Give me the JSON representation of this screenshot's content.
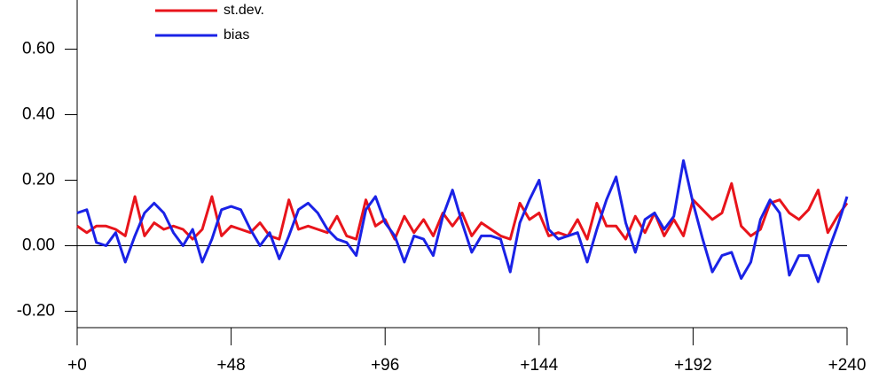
{
  "chart_data": {
    "type": "line",
    "x": [
      0,
      3,
      6,
      9,
      12,
      15,
      18,
      21,
      24,
      27,
      30,
      33,
      36,
      39,
      42,
      45,
      48,
      51,
      54,
      57,
      60,
      63,
      66,
      69,
      72,
      75,
      78,
      81,
      84,
      87,
      90,
      93,
      96,
      99,
      102,
      105,
      108,
      111,
      114,
      117,
      120,
      123,
      126,
      129,
      132,
      135,
      138,
      141,
      144,
      147,
      150,
      153,
      156,
      159,
      162,
      165,
      168,
      171,
      174,
      177,
      180,
      183,
      186,
      189,
      192,
      195,
      198,
      201,
      204,
      207,
      210,
      213,
      216,
      219,
      222,
      225,
      228,
      231,
      234,
      237,
      240
    ],
    "series": [
      {
        "name": "st.dev.",
        "color": "#e8141b",
        "values": [
          0.06,
          0.04,
          0.06,
          0.06,
          0.05,
          0.03,
          0.15,
          0.03,
          0.07,
          0.05,
          0.06,
          0.05,
          0.02,
          0.05,
          0.15,
          0.03,
          0.06,
          0.05,
          0.04,
          0.07,
          0.03,
          0.02,
          0.14,
          0.05,
          0.06,
          0.05,
          0.04,
          0.09,
          0.03,
          0.02,
          0.14,
          0.06,
          0.08,
          0.02,
          0.09,
          0.04,
          0.08,
          0.03,
          0.1,
          0.06,
          0.1,
          0.03,
          0.07,
          0.05,
          0.03,
          0.02,
          0.13,
          0.08,
          0.1,
          0.03,
          0.04,
          0.03,
          0.08,
          0.02,
          0.13,
          0.06,
          0.06,
          0.02,
          0.09,
          0.04,
          0.1,
          0.03,
          0.08,
          0.03,
          0.14,
          0.11,
          0.08,
          0.1,
          0.19,
          0.06,
          0.03,
          0.05,
          0.13,
          0.14,
          0.1,
          0.08,
          0.11,
          0.17,
          0.04,
          0.09,
          0.13
        ]
      },
      {
        "name": "bias",
        "color": "#1a22e6",
        "values": [
          0.1,
          0.11,
          0.01,
          0.0,
          0.04,
          -0.05,
          0.03,
          0.1,
          0.13,
          0.1,
          0.04,
          0.0,
          0.05,
          -0.05,
          0.02,
          0.11,
          0.12,
          0.11,
          0.05,
          0.0,
          0.04,
          -0.04,
          0.03,
          0.11,
          0.13,
          0.1,
          0.05,
          0.02,
          0.01,
          -0.03,
          0.11,
          0.15,
          0.07,
          0.03,
          -0.05,
          0.03,
          0.02,
          -0.03,
          0.09,
          0.17,
          0.07,
          -0.02,
          0.03,
          0.03,
          0.02,
          -0.08,
          0.07,
          0.14,
          0.2,
          0.05,
          0.02,
          0.03,
          0.04,
          -0.05,
          0.05,
          0.14,
          0.21,
          0.07,
          -0.02,
          0.08,
          0.1,
          0.05,
          0.09,
          0.26,
          0.13,
          0.02,
          -0.08,
          -0.03,
          -0.02,
          -0.1,
          -0.05,
          0.08,
          0.14,
          0.1,
          -0.09,
          -0.03,
          -0.03,
          -0.11,
          -0.02,
          0.06,
          0.15
        ]
      }
    ],
    "xlim": [
      0,
      240
    ],
    "xticks": [
      {
        "value": 0,
        "label": "+0"
      },
      {
        "value": 48,
        "label": "+48"
      },
      {
        "value": 96,
        "label": "+96"
      },
      {
        "value": 144,
        "label": "+144"
      },
      {
        "value": 192,
        "label": "+192"
      },
      {
        "value": 240,
        "label": "+240"
      }
    ],
    "ylim": [
      -0.25,
      0.75
    ],
    "yticks": [
      {
        "value": -0.2,
        "label": "-0.20"
      },
      {
        "value": 0,
        "label": "0.00"
      },
      {
        "value": 0.2,
        "label": "0.20"
      },
      {
        "value": 0.4,
        "label": "0.40"
      },
      {
        "value": 0.6,
        "label": "0.60"
      }
    ],
    "hline": 0,
    "legend": "upper left",
    "grid": false
  }
}
